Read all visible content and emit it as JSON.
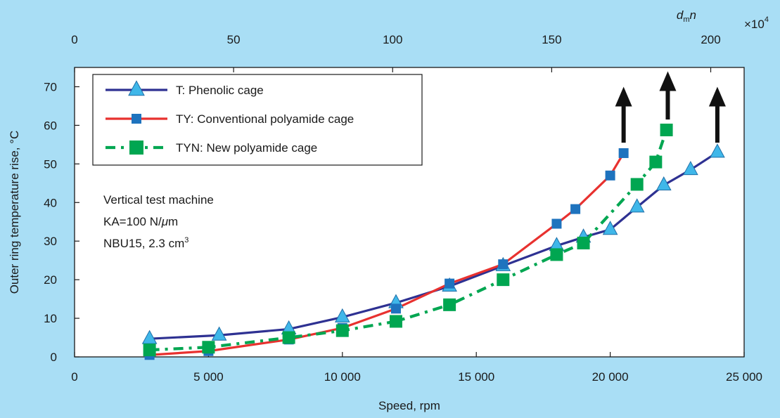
{
  "chart_data": {
    "type": "line",
    "xlabel": "Speed, rpm",
    "ylabel": "Outer ring temperature rise, °C",
    "xlim": [
      0,
      25000
    ],
    "ylim": [
      0,
      75
    ],
    "x_ticks": [
      0,
      5000,
      10000,
      15000,
      20000,
      25000
    ],
    "x_tick_labels": [
      "0",
      "5 000",
      "10 000",
      "15 000",
      "20 000",
      "25 000"
    ],
    "y_ticks": [
      0,
      10,
      20,
      30,
      40,
      50,
      60,
      70
    ],
    "y_tick_labels": [
      "0",
      "10",
      "20",
      "30",
      "40",
      "50",
      "60",
      "70"
    ],
    "top_axis": {
      "label_main": "d",
      "label_sub": "m",
      "label_tail": "n",
      "multiplier_base": "×10",
      "multiplier_exp": "4",
      "ticks": [
        0,
        50,
        100,
        150,
        200
      ],
      "tick_labels": [
        "0",
        "50",
        "100",
        "150",
        "200"
      ],
      "lim": [
        0,
        210.5
      ]
    },
    "grid": false,
    "legend_position": "top-left",
    "series": [
      {
        "name": "T: Phenolic cage",
        "color": "#2e3192",
        "marker": "triangle",
        "marker_color": "#3fb7e9",
        "dash": "solid",
        "x": [
          2800,
          5400,
          8000,
          10000,
          12000,
          14000,
          16000,
          18000,
          19000,
          20000,
          21000,
          22000,
          23000,
          24000
        ],
        "y": [
          4.7,
          5.6,
          7.2,
          10.3,
          14.0,
          18.3,
          23.6,
          28.8,
          31.0,
          33.0,
          38.8,
          44.5,
          48.5,
          53.0
        ]
      },
      {
        "name": "TY: Conventional polyamide cage",
        "color": "#e8312f",
        "marker": "square",
        "marker_color": "#1e73be",
        "dash": "solid",
        "x": [
          2800,
          5000,
          8000,
          10000,
          12000,
          14000,
          16000,
          18000,
          18700,
          20000,
          20500
        ],
        "y": [
          0.5,
          1.5,
          4.5,
          7.5,
          12.5,
          19.0,
          24.0,
          34.5,
          38.3,
          47.0,
          52.8
        ]
      },
      {
        "name": "TYN: New polyamide cage",
        "color": "#00a651",
        "marker": "square",
        "marker_color": "#00a651",
        "dash": "dashed",
        "x": [
          2800,
          5000,
          8000,
          10000,
          12000,
          14000,
          16000,
          18000,
          19000,
          21000,
          21700,
          22100
        ],
        "y": [
          1.8,
          2.5,
          5.0,
          6.8,
          9.2,
          13.5,
          20.0,
          26.5,
          29.5,
          44.7,
          50.5,
          58.8
        ]
      }
    ],
    "arrows": [
      {
        "x": 20500,
        "y_from": 55.5,
        "y_to": 70
      },
      {
        "x": 22150,
        "y_from": 61.5,
        "y_to": 74
      },
      {
        "x": 24000,
        "y_from": 55.5,
        "y_to": 70
      }
    ],
    "annotation_lines": [
      {
        "text": "Vertical test machine"
      },
      {
        "text": "KA=100 N/",
        "italic": "μ",
        "tail": "m"
      },
      {
        "text": "NBU15, 2.3 cm",
        "sup": "3"
      }
    ]
  }
}
